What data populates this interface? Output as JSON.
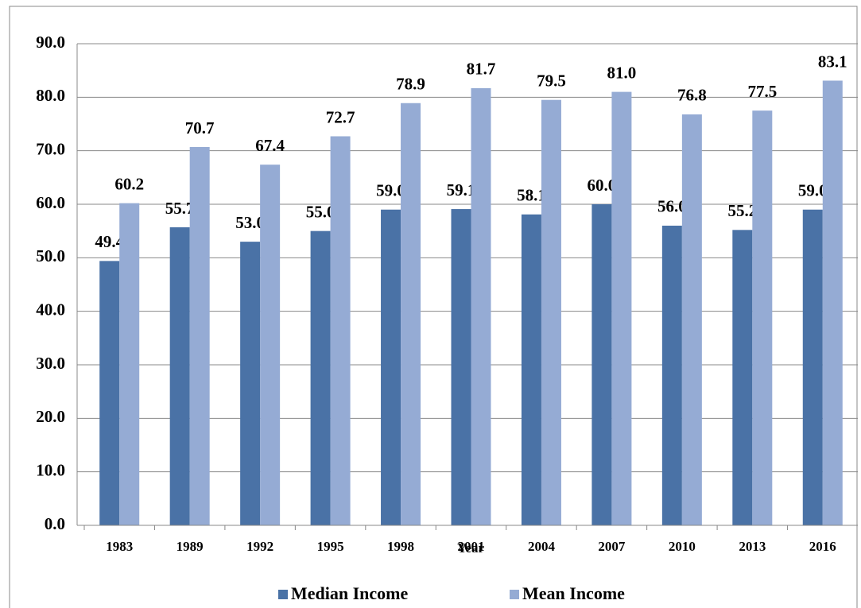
{
  "chart_data": {
    "type": "bar",
    "x_label": "Year",
    "categories": [
      "1983",
      "1989",
      "1992",
      "1995",
      "1998",
      "2001",
      "2004",
      "2007",
      "2010",
      "2013",
      "2016"
    ],
    "series": [
      {
        "name": "Median Income",
        "color": "#4a72a6",
        "values": [
          49.4,
          55.7,
          53.0,
          55.0,
          59.0,
          59.1,
          58.1,
          60.0,
          56.0,
          55.2,
          59.0
        ],
        "value_labels": [
          "49.4",
          "55.7",
          "53.0",
          "55.0",
          "59.0",
          "59.1",
          "58.1",
          "60.0",
          "56.0",
          "55.2",
          "59.0"
        ]
      },
      {
        "name": "Mean Income",
        "color": "#95abd4",
        "values": [
          60.2,
          70.7,
          67.4,
          72.7,
          78.9,
          81.7,
          79.5,
          81.0,
          76.8,
          77.5,
          83.1
        ],
        "value_labels": [
          "60.2",
          "70.7",
          "67.4",
          "72.7",
          "78.9",
          "81.7",
          "79.5",
          "81.0",
          "76.8",
          "77.5",
          "83.1"
        ]
      }
    ],
    "ylim": [
      0,
      90
    ],
    "yticks": [
      {
        "value": 0,
        "label": "0.0"
      },
      {
        "value": 10,
        "label": "10.0"
      },
      {
        "value": 20,
        "label": "20.0"
      },
      {
        "value": 30,
        "label": "30.0"
      },
      {
        "value": 40,
        "label": "40.0"
      },
      {
        "value": 50,
        "label": "50.0"
      },
      {
        "value": 60,
        "label": "60.0"
      },
      {
        "value": 70,
        "label": "70.0"
      },
      {
        "value": 80,
        "label": "80.0"
      },
      {
        "value": 90,
        "label": "90.0"
      }
    ],
    "grid": true,
    "legend": "bottom"
  }
}
